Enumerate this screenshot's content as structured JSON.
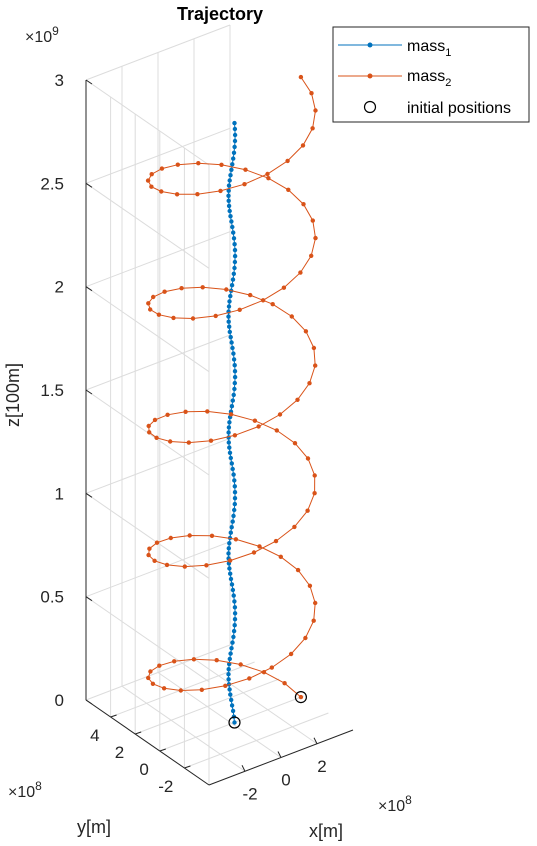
{
  "chart_data": {
    "type": "line",
    "projection": "3d",
    "title": "Trajectory",
    "xlabel": "x[m]",
    "ylabel": "y[m]",
    "zlabel": "z[100m]",
    "x_exponent": "×10",
    "x_exponent_power": "8",
    "y_exponent": "×10",
    "y_exponent_power": "8",
    "z_exponent": "×10",
    "z_exponent_power": "9",
    "xlim": [
      -400000000.0,
      400000000.0
    ],
    "ylim": [
      -400000000.0,
      600000000.0
    ],
    "zlim": [
      0,
      3000000000.0
    ],
    "x_ticks": [
      {
        "value": -200000000.0,
        "label": "-2"
      },
      {
        "value": 0,
        "label": "0"
      },
      {
        "value": 200000000.0,
        "label": "2"
      }
    ],
    "y_ticks": [
      {
        "value": -200000000.0,
        "label": "-2"
      },
      {
        "value": 0,
        "label": "0"
      },
      {
        "value": 200000000.0,
        "label": "2"
      },
      {
        "value": 400000000.0,
        "label": "4"
      }
    ],
    "z_ticks": [
      {
        "value": 0,
        "label": "0"
      },
      {
        "value": 500000000.0,
        "label": "0.5"
      },
      {
        "value": 1000000000.0,
        "label": "1"
      },
      {
        "value": 1500000000.0,
        "label": "1.5"
      },
      {
        "value": 2000000000.0,
        "label": "2"
      },
      {
        "value": 2500000000.0,
        "label": "2.5"
      },
      {
        "value": 3000000000.0,
        "label": "3"
      }
    ],
    "grid": true,
    "legend_position": "top-right",
    "series": [
      {
        "name": "mass",
        "name_subscript": "1",
        "color": "#0072BD",
        "marker": "dot",
        "motion": "helix",
        "center_xy": [
          0,
          0
        ],
        "radius": 15000000.0,
        "turns": 5,
        "z_range": [
          0,
          2900000000.0
        ],
        "point_count": 110
      },
      {
        "name": "mass",
        "name_subscript": "2",
        "color": "#D95319",
        "marker": "dot",
        "motion": "helix",
        "center_xy": [
          0,
          0
        ],
        "radius": 384000000.0,
        "turns": 5,
        "z_range": [
          0,
          3000000000.0
        ],
        "point_count": 110
      }
    ],
    "initial_positions": {
      "name": "initial positions",
      "marker": "circle",
      "color": "#000000"
    }
  }
}
